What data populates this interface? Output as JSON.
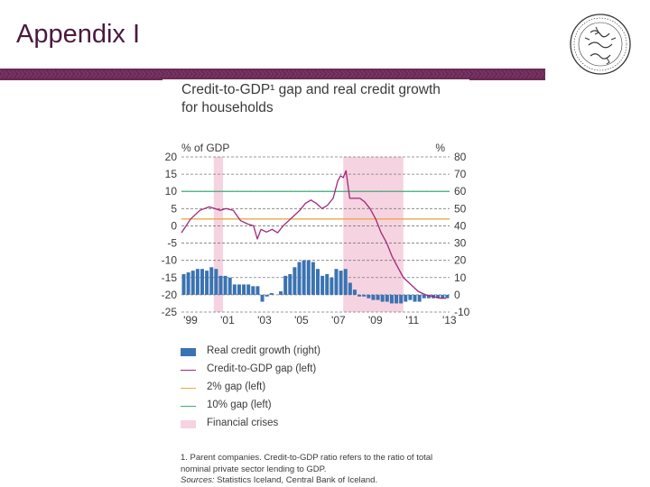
{
  "slide": {
    "title": "Appendix I"
  },
  "chart_title_line1": "Credit-to-GDP¹ gap and real credit growth",
  "chart_title_line2": "for households",
  "footnote": {
    "line1": "1. Parent companies. Credit-to-GDP ratio refers to the ratio of total",
    "line2": "nominal private sector lending to GDP.",
    "source_label": "Sources:",
    "source_text": " Statistics Iceland, Central Bank of Iceland."
  },
  "colors": {
    "bar": "#3a73b2",
    "gap_line": "#a0287a",
    "gap2": "#e8a94a",
    "gap10": "#3fae7a",
    "crisis": "#f6d3e1",
    "band": "#6b2a56"
  },
  "chart_data": {
    "type": "bar+line",
    "left_unit": "% of GDP",
    "right_unit": "%",
    "left_ylim": [
      -25,
      20
    ],
    "right_ylim": [
      -10,
      80
    ],
    "left_ticks": [
      "20",
      "15",
      "10",
      "5",
      "0",
      "-5",
      "-10",
      "-15",
      "-20",
      "-25"
    ],
    "right_ticks": [
      "80",
      "70",
      "60",
      "50",
      "40",
      "30",
      "20",
      "10",
      "0",
      "-10"
    ],
    "x_ticks": [
      "'99",
      "'01",
      "'03",
      "'05",
      "'07",
      "'09",
      "'11",
      "'13"
    ],
    "x_tick_years": [
      1999,
      2001,
      2003,
      2005,
      2007,
      2009,
      2011,
      2013
    ],
    "x_range": [
      1999,
      2013.5
    ],
    "crisis_periods": [
      [
        2000.75,
        2001.25
      ],
      [
        2007.75,
        2011.0
      ]
    ],
    "gap_lines": {
      "two_pct": 2,
      "ten_pct": 10
    },
    "series": [
      {
        "name": "Real credit growth (right)",
        "axis": "right",
        "quarters": [
          1999.0,
          1999.25,
          1999.5,
          1999.75,
          2000.0,
          2000.25,
          2000.5,
          2000.75,
          2001.0,
          2001.25,
          2001.5,
          2001.75,
          2002.0,
          2002.25,
          2002.5,
          2002.75,
          2003.0,
          2003.25,
          2003.5,
          2003.75,
          2004.0,
          2004.25,
          2004.5,
          2004.75,
          2005.0,
          2005.25,
          2005.5,
          2005.75,
          2006.0,
          2006.25,
          2006.5,
          2006.75,
          2007.0,
          2007.25,
          2007.5,
          2007.75,
          2008.0,
          2008.25,
          2008.5,
          2008.75,
          2009.0,
          2009.25,
          2009.5,
          2009.75,
          2010.0,
          2010.25,
          2010.5,
          2010.75,
          2011.0,
          2011.25,
          2011.5,
          2011.75,
          2012.0,
          2012.25,
          2012.5,
          2012.75,
          2013.0,
          2013.25
        ],
        "values": [
          12,
          13,
          14,
          15,
          15,
          14,
          16,
          15,
          11,
          11,
          10,
          6,
          6,
          6,
          6,
          5,
          5,
          -4,
          -1,
          1,
          0,
          2,
          11,
          12,
          16,
          19,
          20,
          20,
          19,
          15,
          11,
          12,
          10,
          15,
          14,
          15,
          7,
          3,
          -1,
          -1,
          -2,
          -3,
          -3,
          -4,
          -4,
          -5,
          -5,
          -5,
          -4,
          -3,
          -4,
          -4,
          -2,
          -2,
          -2,
          -2,
          -2,
          -2
        ]
      },
      {
        "name": "Credit-to-GDP gap (left)",
        "axis": "left",
        "x": [
          1999.0,
          1999.5,
          2000.0,
          2000.5,
          2000.8,
          2001.1,
          2001.4,
          2001.8,
          2002.2,
          2002.6,
          2002.9,
          2003.1,
          2003.3,
          2003.6,
          2003.9,
          2004.2,
          2004.5,
          2004.8,
          2005.1,
          2005.4,
          2005.7,
          2006.0,
          2006.3,
          2006.6,
          2006.9,
          2007.2,
          2007.45,
          2007.6,
          2007.75,
          2007.9,
          2008.1,
          2008.4,
          2008.65,
          2008.9,
          2009.2,
          2009.5,
          2009.8,
          2010.1,
          2010.4,
          2010.7,
          2011.0,
          2011.4,
          2011.8,
          2012.2,
          2012.6,
          2013.0,
          2013.3
        ],
        "values": [
          -2,
          2,
          4.5,
          5.5,
          5,
          4.5,
          5,
          4.5,
          1.5,
          0.5,
          0,
          -3.8,
          -1,
          -1.8,
          -1,
          -2,
          0,
          1.5,
          3,
          4.5,
          6.5,
          7.5,
          6.5,
          5,
          6,
          8,
          13,
          14.5,
          14,
          16,
          8,
          8,
          8,
          7,
          5,
          2,
          -2,
          -5,
          -9,
          -12,
          -15,
          -17,
          -19,
          -20,
          -20.5,
          -21,
          -21
        ]
      },
      {
        "name": "2% gap (left)",
        "axis": "left",
        "values": [
          2
        ]
      },
      {
        "name": "10% gap (left)",
        "axis": "left",
        "values": [
          10
        ]
      }
    ]
  },
  "legend": [
    {
      "key": "bar",
      "label": "Real credit growth (right)"
    },
    {
      "key": "gap_line",
      "label": "Credit-to-GDP gap (left)"
    },
    {
      "key": "gap2",
      "label": "2% gap (left)"
    },
    {
      "key": "gap10",
      "label": "10% gap (left)"
    },
    {
      "key": "crisis",
      "label": "Financial crises"
    }
  ]
}
